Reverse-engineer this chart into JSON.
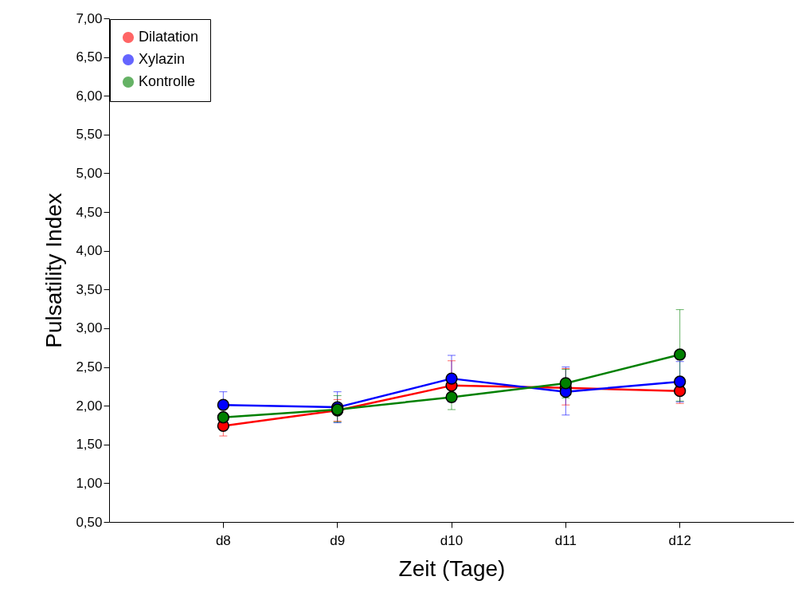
{
  "chart_data": {
    "type": "line",
    "xlabel": "Zeit (Tage)",
    "ylabel": "Pulsatility Index",
    "categories": [
      "d8",
      "d9",
      "d10",
      "d11",
      "d12"
    ],
    "series": [
      {
        "name": "Dilatation",
        "color": "#ff0000",
        "values": [
          1.74,
          1.94,
          2.26,
          2.23,
          2.19
        ],
        "errors": [
          [
            1.61,
            1.87
          ],
          [
            1.8,
            2.08
          ],
          [
            2.26,
            2.58
          ],
          [
            2.01,
            2.48
          ],
          [
            2.03,
            2.35
          ]
        ]
      },
      {
        "name": "Xylazin",
        "color": "#0000ff",
        "values": [
          2.01,
          1.98,
          2.35,
          2.18,
          2.31
        ],
        "errors": [
          [
            2.01,
            2.18
          ],
          [
            1.78,
            2.18
          ],
          [
            2.05,
            2.65
          ],
          [
            1.88,
            2.5
          ],
          [
            2.05,
            2.57
          ]
        ]
      },
      {
        "name": "Kontrolle",
        "color": "#008000",
        "values": [
          1.85,
          1.95,
          2.11,
          2.29,
          2.66
        ],
        "errors": [
          null,
          [
            1.79,
            2.13
          ],
          [
            1.95,
            2.11
          ],
          [
            2.1,
            2.47
          ],
          [
            2.06,
            3.24
          ]
        ]
      }
    ],
    "ylim": [
      0.5,
      7.0
    ],
    "yticks": [
      {
        "value": 0.5,
        "label": "0,50"
      },
      {
        "value": 1.0,
        "label": "1,00"
      },
      {
        "value": 1.5,
        "label": "1,50"
      },
      {
        "value": 2.0,
        "label": "2,00"
      },
      {
        "value": 2.5,
        "label": "2,50"
      },
      {
        "value": 3.0,
        "label": "3,00"
      },
      {
        "value": 3.5,
        "label": "3,50"
      },
      {
        "value": 4.0,
        "label": "4,00"
      },
      {
        "value": 4.5,
        "label": "4,50"
      },
      {
        "value": 5.0,
        "label": "5,00"
      },
      {
        "value": 5.5,
        "label": "5,50"
      },
      {
        "value": 6.0,
        "label": "6,00"
      },
      {
        "value": 6.5,
        "label": "6,50"
      },
      {
        "value": 7.0,
        "label": "7,00"
      }
    ],
    "grid": false,
    "legend": "top left",
    "marker": "circle",
    "line_style": "solid"
  }
}
